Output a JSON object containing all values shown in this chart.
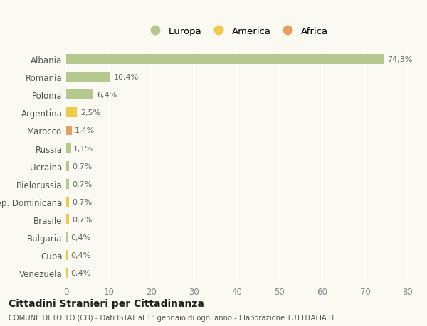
{
  "categories": [
    "Albania",
    "Romania",
    "Polonia",
    "Argentina",
    "Marocco",
    "Russia",
    "Ucraina",
    "Bielorussia",
    "Rep. Dominicana",
    "Brasile",
    "Bulgaria",
    "Cuba",
    "Venezuela"
  ],
  "values": [
    74.3,
    10.4,
    6.4,
    2.5,
    1.4,
    1.1,
    0.7,
    0.7,
    0.7,
    0.7,
    0.4,
    0.4,
    0.4
  ],
  "labels": [
    "74,3%",
    "10,4%",
    "6,4%",
    "2,5%",
    "1,4%",
    "1,1%",
    "0,7%",
    "0,7%",
    "0,7%",
    "0,7%",
    "0,4%",
    "0,4%",
    "0,4%"
  ],
  "continents": [
    "Europa",
    "Europa",
    "Europa",
    "America",
    "Africa",
    "Europa",
    "Europa",
    "Europa",
    "America",
    "America",
    "Europa",
    "America",
    "America"
  ],
  "colors": {
    "Europa": "#b5c98e",
    "America": "#f0c84a",
    "Africa": "#e8a060"
  },
  "legend_labels": [
    "Europa",
    "America",
    "Africa"
  ],
  "legend_colors": [
    "#b5c98e",
    "#f0c84a",
    "#e8a060"
  ],
  "title": "Cittadini Stranieri per Cittadinanza",
  "subtitle": "COMUNE DI TOLLO (CH) - Dati ISTAT al 1° gennaio di ogni anno - Elaborazione TUTTITALIA.IT",
  "xlim": [
    0,
    80
  ],
  "xticks": [
    0,
    10,
    20,
    30,
    40,
    50,
    60,
    70,
    80
  ],
  "background_color": "#fafaf2",
  "grid_color": "#ffffff",
  "bar_height": 0.55,
  "figsize": [
    6.0,
    4.6
  ],
  "dpi": 100
}
